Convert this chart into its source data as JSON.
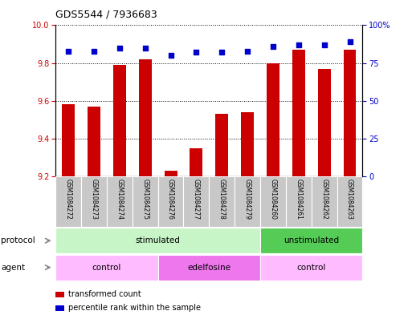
{
  "title": "GDS5544 / 7936683",
  "samples": [
    "GSM1084272",
    "GSM1084273",
    "GSM1084274",
    "GSM1084275",
    "GSM1084276",
    "GSM1084277",
    "GSM1084278",
    "GSM1084279",
    "GSM1084260",
    "GSM1084261",
    "GSM1084262",
    "GSM1084263"
  ],
  "transformed_count": [
    9.58,
    9.57,
    9.79,
    9.82,
    9.23,
    9.35,
    9.53,
    9.54,
    9.8,
    9.87,
    9.77,
    9.87
  ],
  "percentile_rank": [
    83,
    83,
    85,
    85,
    80,
    82,
    82,
    83,
    86,
    87,
    87,
    89
  ],
  "bar_color": "#cc0000",
  "dot_color": "#0000cc",
  "ylim_left": [
    9.2,
    10.0
  ],
  "ylim_right": [
    0,
    100
  ],
  "yticks_left": [
    9.2,
    9.4,
    9.6,
    9.8,
    10.0
  ],
  "yticks_right": [
    0,
    25,
    50,
    75,
    100
  ],
  "ytick_labels_right": [
    "0",
    "25",
    "50",
    "75",
    "100%"
  ],
  "protocol_groups": [
    {
      "label": "stimulated",
      "start": 0,
      "end": 7,
      "color": "#c8f5c8"
    },
    {
      "label": "unstimulated",
      "start": 8,
      "end": 11,
      "color": "#55cc55"
    }
  ],
  "agent_groups": [
    {
      "label": "control",
      "start": 0,
      "end": 3,
      "color": "#ffbbff"
    },
    {
      "label": "edelfosine",
      "start": 4,
      "end": 7,
      "color": "#ee77ee"
    },
    {
      "label": "control",
      "start": 8,
      "end": 11,
      "color": "#ffbbff"
    }
  ],
  "label_protocol": "protocol",
  "label_agent": "agent",
  "legend_bar_label": "transformed count",
  "legend_dot_label": "percentile rank within the sample",
  "sample_bg_color": "#c8c8c8",
  "bar_width": 0.5
}
